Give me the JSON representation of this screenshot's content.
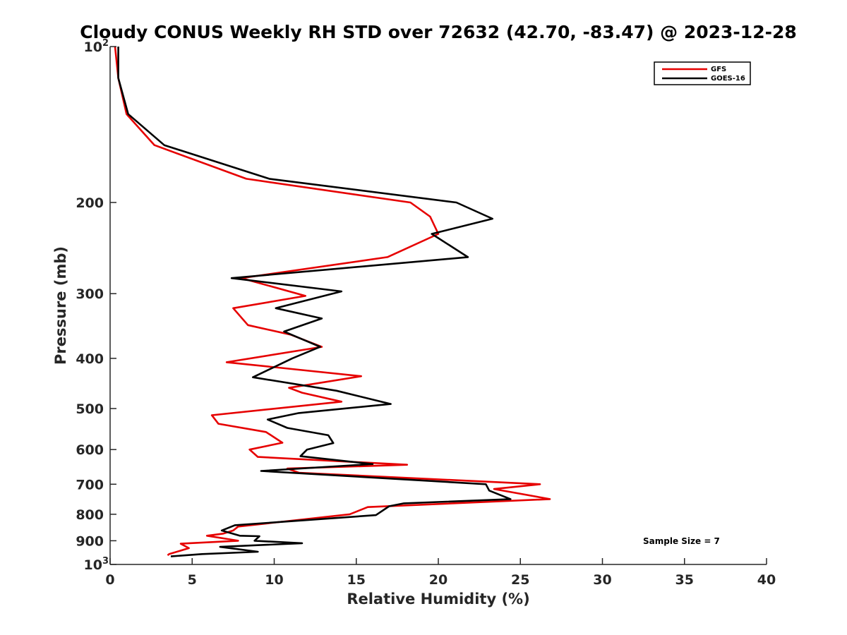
{
  "chart_data": {
    "type": "line",
    "title": "Cloudy CONUS Weekly RH STD over 72632 (42.70, -83.47) @ 2023-12-28",
    "xlabel": "Relative Humidity (%)",
    "ylabel": "Pressure (mb)",
    "xlim": [
      0,
      40
    ],
    "ylim": [
      1000,
      100
    ],
    "yscale": "log",
    "y_reversed": true,
    "grid": false,
    "legend_position": "top-right",
    "x_ticks": [
      "0",
      "5",
      "10",
      "15",
      "20",
      "25",
      "30",
      "35",
      "40"
    ],
    "y_ticks": [
      {
        "value": 100,
        "label": "10",
        "exp": "2"
      },
      {
        "value": 200,
        "label": "200",
        "exp": ""
      },
      {
        "value": 300,
        "label": "300",
        "exp": ""
      },
      {
        "value": 400,
        "label": "400",
        "exp": ""
      },
      {
        "value": 500,
        "label": "500",
        "exp": ""
      },
      {
        "value": 600,
        "label": "600",
        "exp": ""
      },
      {
        "value": 700,
        "label": "700",
        "exp": ""
      },
      {
        "value": 800,
        "label": "800",
        "exp": ""
      },
      {
        "value": 900,
        "label": "900",
        "exp": ""
      },
      {
        "value": 1000,
        "label": "10",
        "exp": "3"
      }
    ],
    "series": [
      {
        "name": "GFS",
        "color": "#e60000",
        "points": [
          [
            0.3,
            100
          ],
          [
            0.5,
            115
          ],
          [
            1.0,
            135
          ],
          [
            2.7,
            155
          ],
          [
            8.3,
            180
          ],
          [
            18.3,
            200
          ],
          [
            19.5,
            213
          ],
          [
            20.0,
            230
          ],
          [
            16.9,
            255
          ],
          [
            8.0,
            280
          ],
          [
            11.9,
            303
          ],
          [
            7.5,
            320
          ],
          [
            8.4,
            345
          ],
          [
            11.0,
            360
          ],
          [
            12.9,
            380
          ],
          [
            7.1,
            407
          ],
          [
            15.3,
            433
          ],
          [
            10.9,
            456
          ],
          [
            11.7,
            466
          ],
          [
            14.1,
            485
          ],
          [
            6.2,
            515
          ],
          [
            6.6,
            535
          ],
          [
            9.5,
            555
          ],
          [
            10.5,
            582
          ],
          [
            8.5,
            600
          ],
          [
            9.0,
            620
          ],
          [
            18.1,
            642
          ],
          [
            10.8,
            653
          ],
          [
            11.5,
            665
          ],
          [
            26.2,
            700
          ],
          [
            23.4,
            715
          ],
          [
            26.8,
            748
          ],
          [
            15.7,
            775
          ],
          [
            14.6,
            800
          ],
          [
            7.8,
            845
          ],
          [
            7.5,
            860
          ],
          [
            6.9,
            872
          ],
          [
            5.9,
            880
          ],
          [
            7.8,
            900
          ],
          [
            4.3,
            912
          ],
          [
            4.8,
            930
          ],
          [
            3.6,
            955
          ],
          [
            3.5,
            960
          ]
        ]
      },
      {
        "name": "GOES-16",
        "color": "#000000",
        "points": [
          [
            0.5,
            100
          ],
          [
            0.5,
            115
          ],
          [
            1.1,
            135
          ],
          [
            3.3,
            155
          ],
          [
            9.7,
            180
          ],
          [
            21.1,
            200
          ],
          [
            23.3,
            215
          ],
          [
            19.6,
            230
          ],
          [
            21.8,
            255
          ],
          [
            7.4,
            280
          ],
          [
            14.1,
            297
          ],
          [
            10.1,
            320
          ],
          [
            12.9,
            335
          ],
          [
            10.6,
            355
          ],
          [
            12.8,
            380
          ],
          [
            11.1,
            400
          ],
          [
            8.7,
            435
          ],
          [
            13.8,
            462
          ],
          [
            17.1,
            490
          ],
          [
            11.5,
            510
          ],
          [
            9.6,
            525
          ],
          [
            10.8,
            545
          ],
          [
            13.3,
            563
          ],
          [
            13.6,
            583
          ],
          [
            12.0,
            600
          ],
          [
            11.6,
            618
          ],
          [
            16.0,
            640
          ],
          [
            9.2,
            660
          ],
          [
            22.9,
            700
          ],
          [
            23.1,
            720
          ],
          [
            24.4,
            748
          ],
          [
            17.9,
            762
          ],
          [
            17.0,
            772
          ],
          [
            16.2,
            803
          ],
          [
            7.6,
            840
          ],
          [
            6.8,
            860
          ],
          [
            7.9,
            880
          ],
          [
            9.1,
            882
          ],
          [
            8.8,
            900
          ],
          [
            11.7,
            910
          ],
          [
            6.7,
            925
          ],
          [
            9.0,
            945
          ],
          [
            5.6,
            955
          ],
          [
            3.7,
            965
          ]
        ]
      }
    ],
    "annotation": "Sample Size = 7"
  }
}
